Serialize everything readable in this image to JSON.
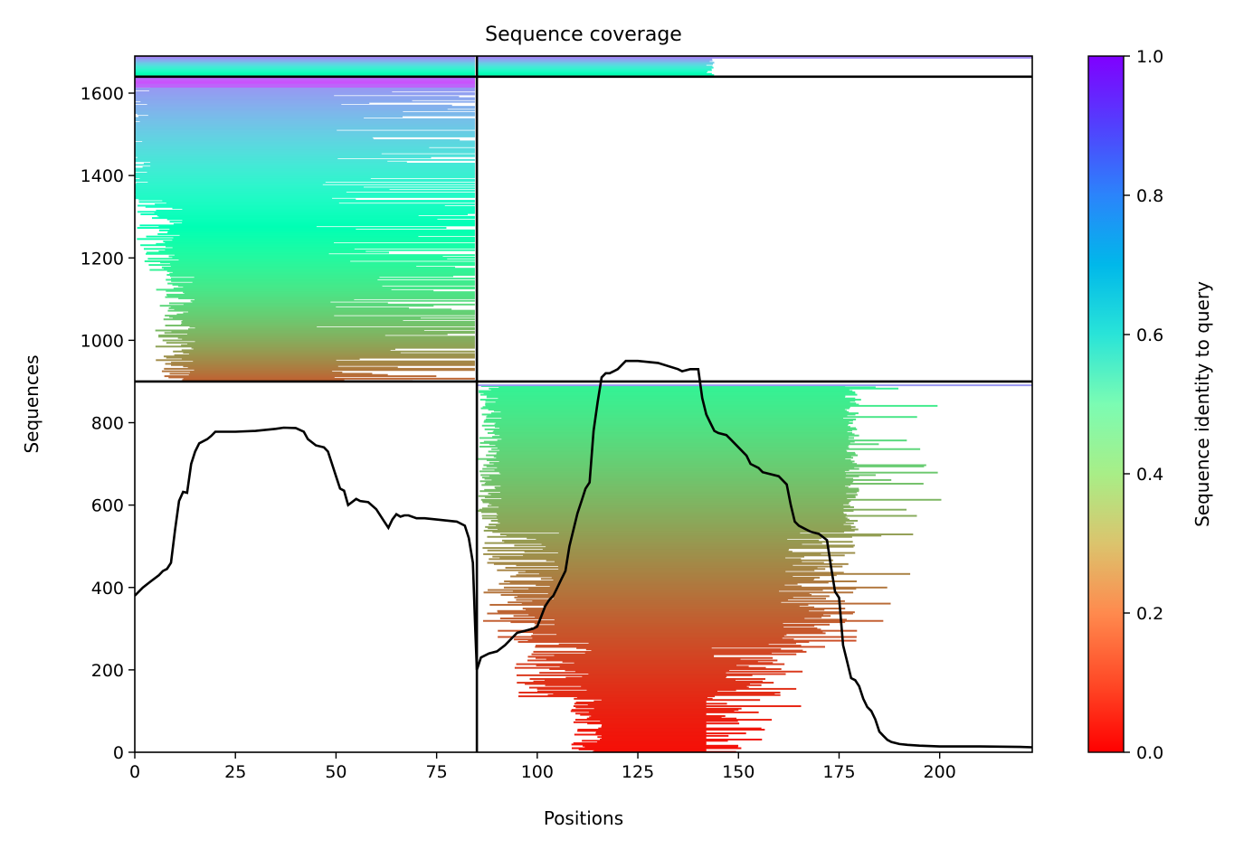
{
  "chart_data": {
    "type": "heatmap",
    "title": "Sequence coverage",
    "xlabel": "Positions",
    "ylabel": "Sequences",
    "xlim": [
      0,
      223
    ],
    "ylim": [
      0,
      1690
    ],
    "xticks": [
      0,
      25,
      50,
      75,
      100,
      125,
      150,
      175,
      200
    ],
    "yticks": [
      0,
      200,
      400,
      600,
      800,
      1000,
      1200,
      1400,
      1600
    ],
    "colorbar": {
      "label": "Sequence identity to query",
      "range": [
        0,
        1
      ],
      "ticks": [
        "0.0",
        "0.2",
        "0.4",
        "0.6",
        "0.8",
        "1.0"
      ],
      "colormap": "rainbow_r"
    },
    "chain_boundaries": {
      "x": [
        85
      ],
      "y": [
        900,
        1640
      ]
    },
    "blocks": [
      {
        "id": "chain-a-alignments",
        "x": [
          0,
          85
        ],
        "rows": [
          900,
          1640
        ],
        "identity": [
          0.12,
          0.82
        ]
      },
      {
        "id": "chain-b-alignments",
        "x": [
          85,
          223
        ],
        "rows": [
          0,
          900
        ],
        "identity": [
          0.02,
          0.4
        ]
      },
      {
        "id": "paired-alignments",
        "x": [
          0,
          223
        ],
        "rows": [
          1640,
          1690
        ],
        "identity": [
          0.45,
          0.85
        ]
      }
    ],
    "coverage_line": {
      "x": [
        0,
        2,
        4,
        6,
        7,
        8,
        9,
        10,
        11,
        12,
        13,
        14,
        15,
        16,
        18,
        19,
        20,
        25,
        30,
        35,
        37,
        40,
        42,
        43,
        45,
        47,
        48,
        49,
        50,
        51,
        52,
        53,
        55,
        56,
        58,
        60,
        62,
        63,
        64,
        65,
        66,
        67,
        68,
        70,
        72,
        75,
        80,
        82,
        83,
        84,
        84.6,
        85,
        86,
        88,
        90,
        92,
        94,
        95,
        97,
        99,
        100,
        101,
        102,
        103,
        104,
        105,
        106,
        107,
        108,
        110,
        111,
        112,
        113,
        114,
        115,
        116,
        117,
        118,
        119,
        120,
        121,
        122,
        123,
        124,
        125,
        130,
        135,
        136,
        138,
        140,
        141,
        142,
        143,
        144,
        145,
        147,
        148,
        150,
        152,
        153,
        155,
        156,
        160,
        162,
        163,
        164,
        165,
        166,
        167,
        168,
        170,
        172,
        173,
        174,
        175,
        176,
        177,
        178,
        179,
        180,
        181,
        182,
        183,
        184,
        185,
        186,
        187,
        188,
        190,
        192,
        195,
        200,
        205,
        210,
        220,
        223
      ],
      "y": [
        380,
        400,
        415,
        430,
        440,
        445,
        460,
        540,
        610,
        632,
        630,
        700,
        730,
        750,
        760,
        768,
        778,
        778,
        780,
        785,
        788,
        787,
        778,
        760,
        745,
        740,
        730,
        700,
        670,
        640,
        635,
        600,
        615,
        610,
        607,
        590,
        560,
        545,
        565,
        578,
        572,
        575,
        575,
        568,
        568,
        565,
        560,
        550,
        520,
        460,
        300,
        200,
        230,
        240,
        245,
        260,
        280,
        290,
        295,
        300,
        305,
        330,
        355,
        370,
        380,
        400,
        420,
        440,
        500,
        580,
        610,
        640,
        655,
        780,
        850,
        910,
        920,
        920,
        925,
        930,
        940,
        950,
        950,
        950,
        950,
        945,
        930,
        925,
        930,
        930,
        860,
        820,
        800,
        780,
        775,
        770,
        760,
        740,
        720,
        700,
        690,
        680,
        670,
        650,
        600,
        560,
        550,
        545,
        540,
        535,
        530,
        515,
        450,
        390,
        375,
        260,
        220,
        180,
        175,
        160,
        130,
        110,
        100,
        80,
        50,
        40,
        30,
        25,
        20,
        18,
        16,
        14,
        14,
        14,
        13,
        12
      ]
    }
  }
}
